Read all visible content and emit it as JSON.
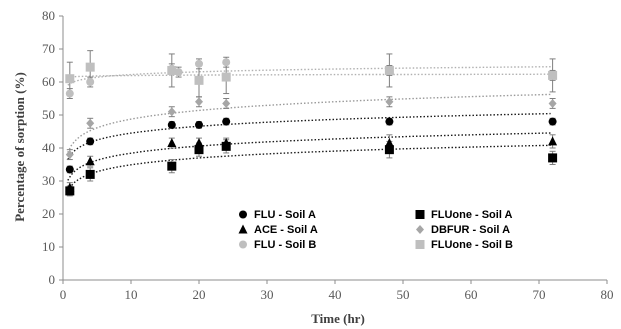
{
  "chart_data": {
    "type": "scatter",
    "xlabel": "Time (hr)",
    "ylabel": "Percentage of sorption (%)",
    "xlim": [
      0,
      80
    ],
    "ylim": [
      0,
      80
    ],
    "x_ticks": [
      "0",
      "10",
      "20",
      "30",
      "40",
      "50",
      "60",
      "70",
      "80"
    ],
    "y_ticks": [
      "0",
      "10",
      "20",
      "30",
      "40",
      "50",
      "60",
      "70",
      "80"
    ],
    "grid": false,
    "legend_position": "lower-center",
    "trendlines": "dotted logarithmic fits",
    "series": [
      {
        "name": "FLU - Soil A",
        "marker": "circle",
        "color": "#000000",
        "x": [
          1,
          4,
          16,
          20,
          24,
          48,
          72
        ],
        "y": [
          33.5,
          42,
          47,
          47,
          48,
          48,
          48
        ],
        "err": [
          1,
          1,
          1,
          1,
          1,
          1,
          1
        ],
        "trend": {
          "a": 37.6,
          "b": 3.0
        }
      },
      {
        "name": "FLUone - Soil A",
        "marker": "square",
        "color": "#000000",
        "x": [
          1,
          4,
          16,
          20,
          24,
          48,
          72
        ],
        "y": [
          27,
          32,
          34.5,
          39.5,
          40.5,
          39.5,
          37
        ],
        "err": [
          1.5,
          2,
          2,
          2,
          2,
          2.5,
          2
        ],
        "trend": {
          "a": 28,
          "b": 3.0
        }
      },
      {
        "name": "ACE - Soil A",
        "marker": "triangle",
        "color": "#000000",
        "x": [
          1,
          4,
          16,
          20,
          24,
          48,
          72
        ],
        "y": [
          28,
          36,
          41.5,
          41.5,
          41.5,
          41.5,
          42
        ],
        "err": [
          1.5,
          1.5,
          1.5,
          1.5,
          1.5,
          2.5,
          2
        ],
        "trend": {
          "a": 31.3,
          "b": 3.1
        }
      },
      {
        "name": "DBFUR - Soil A",
        "marker": "diamond",
        "color": "#a6a6a6",
        "x": [
          1,
          4,
          16,
          20,
          24,
          48,
          72
        ],
        "y": [
          38,
          47.5,
          51,
          54,
          53.5,
          54,
          53.5
        ],
        "err": [
          1.5,
          1.5,
          1.5,
          1.5,
          1.5,
          1.5,
          1.5
        ],
        "trend": {
          "a": 40,
          "b": 3.8
        }
      },
      {
        "name": "FLU - Soil B",
        "marker": "circle",
        "color": "#bfbfbf",
        "x": [
          1,
          4,
          16,
          17,
          20,
          24,
          48,
          72
        ],
        "y": [
          56.5,
          60,
          64,
          63,
          65.5,
          66,
          63.5,
          62
        ],
        "err": [
          1.5,
          1.5,
          1.5,
          1.5,
          1.5,
          1.5,
          1.5,
          1.5
        ],
        "trend": {
          "a": 59.5,
          "b": 1.2
        }
      },
      {
        "name": "FLUone - Soil B",
        "marker": "square",
        "color": "#bfbfbf",
        "x": [
          1,
          4,
          16,
          20,
          24,
          48,
          72
        ],
        "y": [
          61,
          64.5,
          63.5,
          60.5,
          61.5,
          63.5,
          62
        ],
        "err": [
          5,
          5,
          5,
          5,
          5,
          5,
          5
        ],
        "trend": {
          "a": 61.5,
          "b": 0.2
        }
      }
    ]
  }
}
